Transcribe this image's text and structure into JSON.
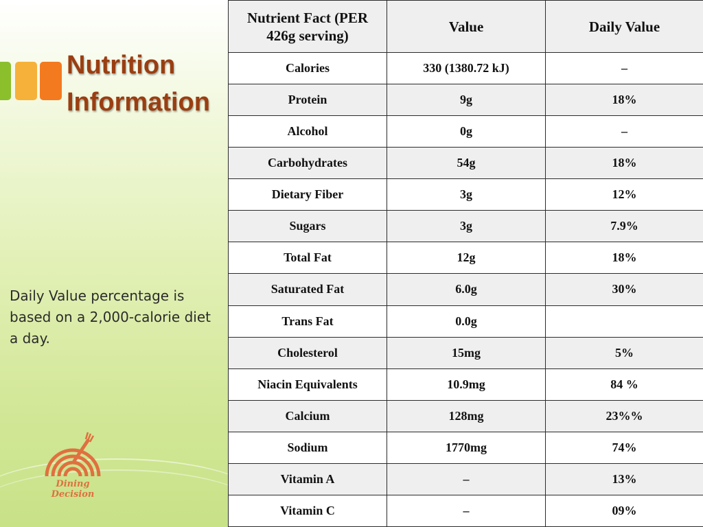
{
  "title_line1": "Nutrition",
  "title_line2": "Information",
  "note": "Daily Value percentage is based on a 2,000-calorie diet a day.",
  "logo_text": "Dining Decision",
  "colors": {
    "title": "#9a3e12",
    "bar_green": "#8bbf2c",
    "bar_yellow": "#f6b13a",
    "bar_orange": "#f47a1f",
    "logo": "#e0703f"
  },
  "table": {
    "headers": [
      "Nutrient Fact (PER 426g serving)",
      "Value",
      "Daily Value"
    ],
    "rows": [
      [
        "Calories",
        "330 (1380.72 kJ)",
        "–"
      ],
      [
        "Protein",
        "9g",
        "18%"
      ],
      [
        "Alcohol",
        "0g",
        "–"
      ],
      [
        "Carbohydrates",
        "54g",
        "18%"
      ],
      [
        "Dietary Fiber",
        "3g",
        "12%"
      ],
      [
        "Sugars",
        "3g",
        "7.9%"
      ],
      [
        "Total Fat",
        "12g",
        "18%"
      ],
      [
        "Saturated Fat",
        "6.0g",
        "30%"
      ],
      [
        "Trans Fat",
        "0.0g",
        ""
      ],
      [
        "Cholesterol",
        "15mg",
        "5%"
      ],
      [
        "Niacin Equivalents",
        "10.9mg",
        "84 %"
      ],
      [
        "Calcium",
        "128mg",
        "23%%"
      ],
      [
        "Sodium",
        "1770mg",
        "74%"
      ],
      [
        "Vitamin A",
        "–",
        "13%"
      ],
      [
        "Vitamin C",
        "–",
        "09%"
      ]
    ]
  }
}
